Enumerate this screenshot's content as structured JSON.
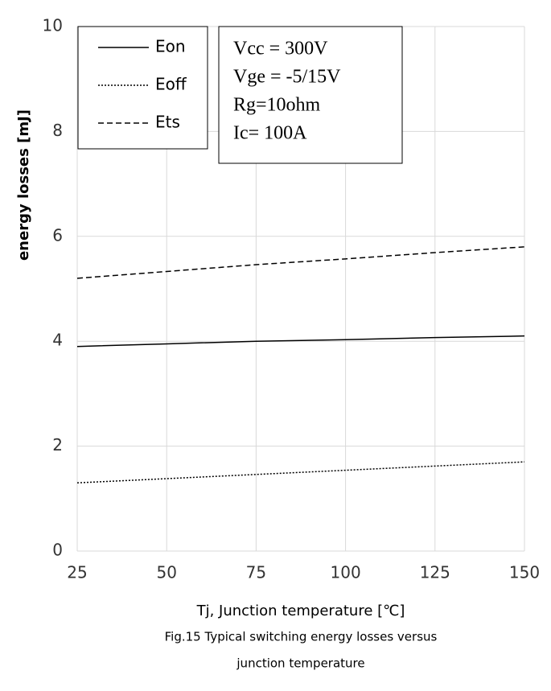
{
  "chart_data": {
    "type": "line",
    "x": [
      25,
      50,
      75,
      100,
      125,
      150
    ],
    "series": [
      {
        "name": "Eon",
        "color": "#000000",
        "dash": "solid",
        "values": [
          3.9,
          3.95,
          4.0,
          4.03,
          4.07,
          4.1
        ]
      },
      {
        "name": "Eoff",
        "color": "#000000",
        "dash": "dotted",
        "values": [
          1.3,
          1.38,
          1.46,
          1.54,
          1.62,
          1.7
        ]
      },
      {
        "name": "Ets",
        "color": "#000000",
        "dash": "dashed",
        "values": [
          5.2,
          5.33,
          5.46,
          5.57,
          5.69,
          5.8
        ]
      }
    ],
    "xlim": [
      25,
      150
    ],
    "xticks": [
      25,
      50,
      75,
      100,
      125,
      150
    ],
    "ylim": [
      0,
      10
    ],
    "yticks": [
      0,
      2,
      4,
      6,
      8,
      10
    ],
    "grid": true,
    "legend": "upper left",
    "ylabel": "energy losses [mJ]",
    "xlabel": "Tj, Junction temperature [℃]",
    "annotations": [
      "Vcc = 300V",
      "Vge = -5/15V",
      "Rg=10ohm",
      "Ic= 100A"
    ],
    "caption": [
      "Fig.15 Typical switching energy losses versus",
      "junction temperature"
    ]
  }
}
